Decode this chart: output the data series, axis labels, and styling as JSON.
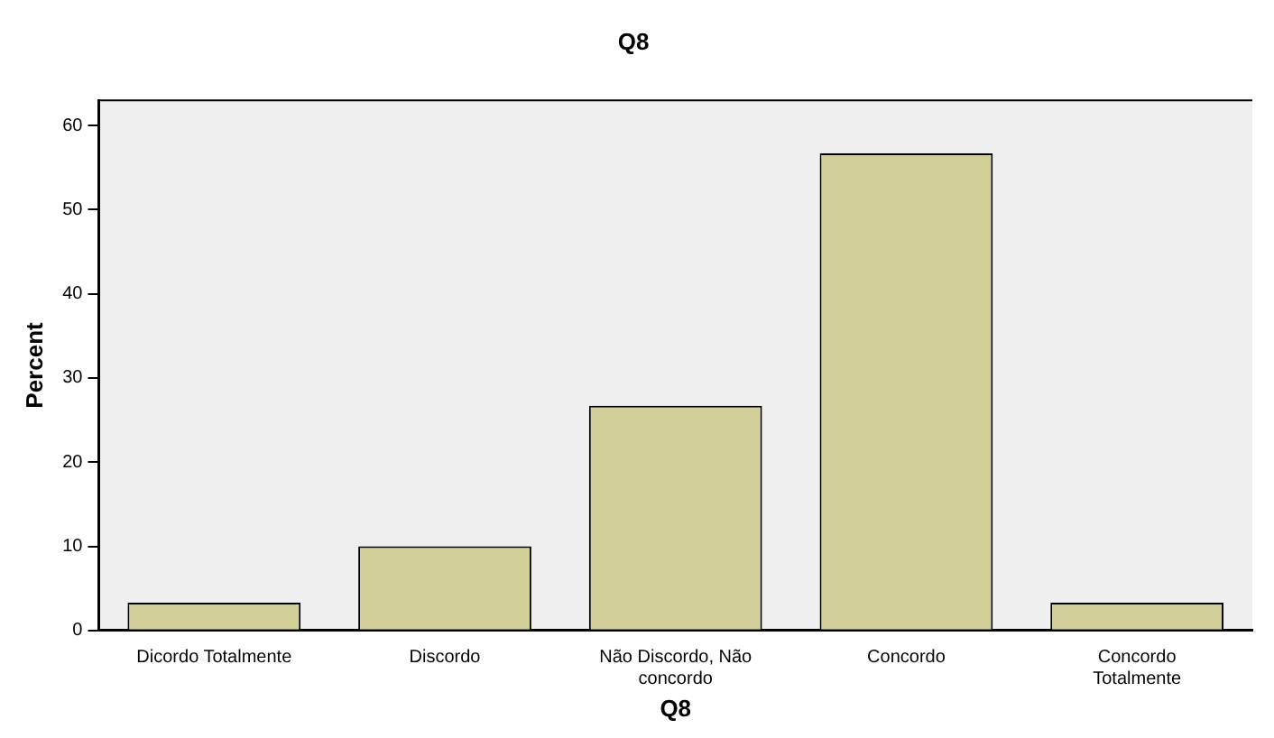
{
  "chart_data": {
    "type": "bar",
    "title": "Q8",
    "xlabel": "Q8",
    "ylabel": "Percent",
    "categories": [
      "Dicordo Totalmente",
      "Discordo",
      "Não Discordo, Não concordo",
      "Concordo",
      "Concordo Totalmente"
    ],
    "values": [
      3.3,
      10,
      26.7,
      56.7,
      3.3
    ],
    "color": "#d3cf99",
    "ylim": [
      0,
      63
    ],
    "yticks": [
      0,
      10,
      20,
      30,
      40,
      50,
      60
    ],
    "grid": false,
    "legend": false
  }
}
